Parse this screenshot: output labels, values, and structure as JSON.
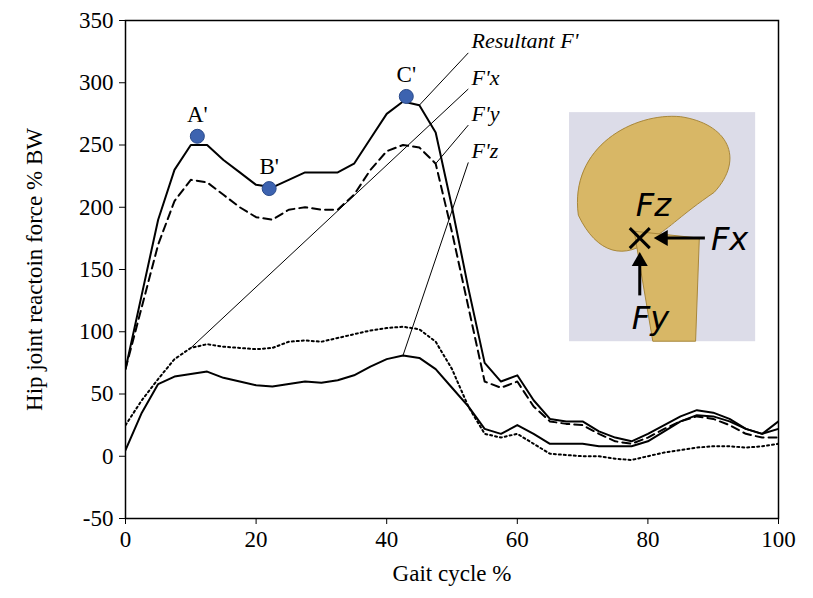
{
  "chart_data": {
    "type": "line",
    "x_label": "Gait cycle %",
    "y_label": "Hip joint reactoin force % BW",
    "xlim": [
      0,
      100
    ],
    "xticks": [
      0,
      20,
      40,
      60,
      80,
      100
    ],
    "ylim": [
      -50,
      350
    ],
    "yticks": [
      -50,
      0,
      50,
      100,
      150,
      200,
      250,
      300,
      350
    ],
    "grid": false,
    "x": [
      0,
      2.5,
      5,
      7.5,
      10,
      12.5,
      15,
      17.5,
      20,
      22.5,
      25,
      27.5,
      30,
      32.5,
      35,
      37.5,
      40,
      42.5,
      45,
      47.5,
      50,
      52.5,
      55,
      57.5,
      60,
      62.5,
      65,
      67.5,
      70,
      72.5,
      75,
      77.5,
      80,
      82.5,
      85,
      87.5,
      90,
      92.5,
      95,
      97.5,
      100
    ],
    "series": [
      {
        "name": "Resultant F'",
        "color": "#000000",
        "line_style": "solid",
        "values": [
          70,
          130,
          190,
          230,
          250,
          250,
          238,
          228,
          218,
          216,
          222,
          228,
          228,
          228,
          235,
          255,
          275,
          285,
          282,
          260,
          200,
          135,
          75,
          60,
          65,
          45,
          30,
          28,
          28,
          20,
          15,
          12,
          18,
          25,
          32,
          37,
          35,
          30,
          22,
          18,
          22
        ]
      },
      {
        "name": "F'x",
        "color": "#000000",
        "line_style": "dotted",
        "values": [
          25,
          45,
          62,
          78,
          87,
          90,
          88,
          87,
          86,
          87,
          92,
          93,
          92,
          95,
          98,
          101,
          103,
          104,
          102,
          92,
          70,
          40,
          18,
          15,
          18,
          10,
          2,
          1,
          0,
          0,
          -2,
          -3,
          0,
          3,
          5,
          7,
          8,
          8,
          7,
          8,
          10
        ]
      },
      {
        "name": "F'y",
        "color": "#000000",
        "line_style": "dashed",
        "values": [
          70,
          120,
          170,
          205,
          222,
          220,
          210,
          200,
          192,
          190,
          198,
          200,
          198,
          198,
          210,
          230,
          245,
          250,
          248,
          235,
          180,
          120,
          60,
          55,
          60,
          40,
          28,
          26,
          25,
          18,
          12,
          10,
          15,
          22,
          28,
          32,
          30,
          25,
          18,
          15,
          15
        ]
      },
      {
        "name": "F'z",
        "color": "#000000",
        "line_style": "solid",
        "values": [
          5,
          35,
          58,
          64,
          66,
          68,
          63,
          60,
          57,
          56,
          58,
          60,
          59,
          61,
          65,
          72,
          78,
          81,
          79,
          70,
          55,
          40,
          22,
          18,
          25,
          18,
          10,
          10,
          10,
          8,
          8,
          8,
          12,
          20,
          28,
          33,
          32,
          28,
          22,
          18,
          28
        ]
      }
    ],
    "points": {
      "labels": [
        "A'",
        "B'",
        "C'"
      ],
      "x": [
        11,
        22,
        43
      ],
      "y": [
        257,
        215,
        289
      ],
      "color": "#3d63b0",
      "marker": "circle"
    },
    "diagram_labels": [
      "Fz",
      "Fx",
      "Fy"
    ]
  }
}
